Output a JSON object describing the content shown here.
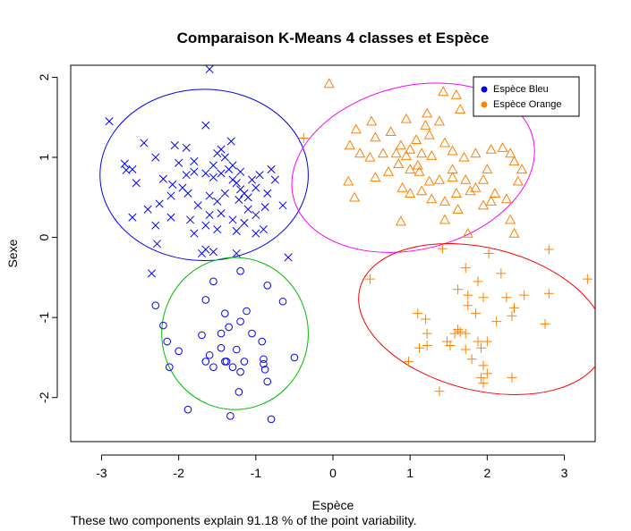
{
  "footnote": "These two components explain 91.18 % of the point variability.",
  "chart_data": {
    "type": "scatter",
    "title": "Comparaison K-Means 4 classes et Espèce",
    "xlabel": "Espèce",
    "ylabel": "Sexe",
    "xlim": [
      -3.4,
      3.4
    ],
    "ylim": [
      -2.55,
      2.15
    ],
    "xticks": [
      -3,
      -2,
      -1,
      0,
      1,
      2,
      3
    ],
    "yticks": [
      -2,
      -1,
      0,
      1,
      2
    ],
    "grid": false,
    "legend": {
      "position": "top-right",
      "entries": [
        {
          "label": "Espèce Bleu",
          "color": "#0000ff"
        },
        {
          "label": "Espèce Orange",
          "color": "#ff8000"
        }
      ]
    },
    "ellipses": [
      {
        "cx": -1.67,
        "cy": 0.78,
        "rx": 1.35,
        "ry": 1.07,
        "color": "#0000ff"
      },
      {
        "cx": -1.27,
        "cy": -1.2,
        "rx": 0.95,
        "ry": 0.95,
        "color": "#00bb00"
      },
      {
        "cx": 1.04,
        "cy": 0.87,
        "rx": 1.6,
        "ry": 1.02,
        "angle": -14,
        "color": "#ff00ff"
      },
      {
        "cx": 1.93,
        "cy": -1.02,
        "rx": 1.63,
        "ry": 0.89,
        "angle": 14,
        "color": "#ff0000"
      }
    ],
    "series": [
      {
        "color": "#0000ff",
        "marker": "x",
        "points": [
          [
            -2.9,
            1.45
          ],
          [
            -1.6,
            2.1
          ],
          [
            -2.45,
            1.18
          ],
          [
            -2.7,
            0.92
          ],
          [
            -2.68,
            0.84
          ],
          [
            -2.2,
            0.73
          ],
          [
            -2.3,
            1.0
          ],
          [
            -2.05,
            1.15
          ],
          [
            -2.0,
            0.93
          ],
          [
            -1.9,
            0.78
          ],
          [
            -2.08,
            0.66
          ],
          [
            -1.95,
            0.62
          ],
          [
            -1.8,
            0.82
          ],
          [
            -1.65,
            0.8
          ],
          [
            -1.55,
            0.75
          ],
          [
            -1.45,
            0.8
          ],
          [
            -1.35,
            0.85
          ],
          [
            -1.3,
            0.72
          ],
          [
            -1.25,
            0.68
          ],
          [
            -1.2,
            0.6
          ],
          [
            -1.15,
            0.55
          ],
          [
            -1.0,
            0.62
          ],
          [
            -0.85,
            0.55
          ],
          [
            -0.75,
            0.72
          ],
          [
            -0.8,
            0.85
          ],
          [
            -0.95,
            0.78
          ],
          [
            -1.05,
            0.72
          ],
          [
            -1.1,
            0.5
          ],
          [
            -1.22,
            0.47
          ],
          [
            -1.4,
            0.55
          ],
          [
            -1.5,
            0.45
          ],
          [
            -1.6,
            0.52
          ],
          [
            -1.75,
            0.4
          ],
          [
            -1.88,
            0.55
          ],
          [
            -2.1,
            0.52
          ],
          [
            -2.25,
            0.42
          ],
          [
            -2.4,
            0.35
          ],
          [
            -2.6,
            0.25
          ],
          [
            -2.3,
            0.15
          ],
          [
            -2.1,
            0.25
          ],
          [
            -1.85,
            0.22
          ],
          [
            -1.6,
            0.28
          ],
          [
            -1.45,
            0.3
          ],
          [
            -1.3,
            0.22
          ],
          [
            -1.15,
            0.18
          ],
          [
            -1.0,
            0.28
          ],
          [
            -0.88,
            0.38
          ],
          [
            -0.65,
            0.4
          ],
          [
            -1.25,
            0.08
          ],
          [
            -1.5,
            0.1
          ],
          [
            -1.65,
            0.15
          ],
          [
            -2.28,
            -0.08
          ],
          [
            -1.65,
            -0.15
          ],
          [
            -1.55,
            -0.18
          ],
          [
            -1.7,
            -0.2
          ],
          [
            -1.25,
            -0.2
          ],
          [
            -0.58,
            -0.25
          ],
          [
            -2.35,
            -0.45
          ],
          [
            -1.8,
            0.05
          ],
          [
            -1.45,
            1.1
          ],
          [
            -1.4,
            1.0
          ],
          [
            -1.3,
            0.9
          ],
          [
            -1.5,
            1.05
          ],
          [
            -1.65,
            1.4
          ],
          [
            -1.9,
            1.12
          ],
          [
            -1.55,
            0.9
          ],
          [
            -1.32,
            1.2
          ],
          [
            -1.2,
            0.82
          ],
          [
            -1.1,
            0.35
          ],
          [
            -0.9,
            0.1
          ],
          [
            -1.0,
            0.05
          ],
          [
            -1.8,
            0.95
          ],
          [
            -2.55,
            0.68
          ],
          [
            -2.6,
            0.85
          ]
        ]
      },
      {
        "color": "#0000ff",
        "marker": "o",
        "points": [
          [
            -1.55,
            -0.55
          ],
          [
            -1.2,
            -0.42
          ],
          [
            -0.85,
            -0.6
          ],
          [
            -0.65,
            -0.8
          ],
          [
            -1.65,
            -0.78
          ],
          [
            -2.3,
            -0.85
          ],
          [
            -2.2,
            -1.1
          ],
          [
            -2.15,
            -1.3
          ],
          [
            -2.0,
            -1.42
          ],
          [
            -1.7,
            -1.22
          ],
          [
            -1.6,
            -1.47
          ],
          [
            -1.55,
            -1.62
          ],
          [
            -1.45,
            -1.38
          ],
          [
            -1.38,
            -1.55
          ],
          [
            -1.3,
            -1.62
          ],
          [
            -1.2,
            -1.68
          ],
          [
            -1.15,
            -1.55
          ],
          [
            -1.05,
            -1.2
          ],
          [
            -1.12,
            -0.92
          ],
          [
            -1.2,
            -1.05
          ],
          [
            -1.4,
            -0.95
          ],
          [
            -1.35,
            -1.12
          ],
          [
            -1.45,
            -1.2
          ],
          [
            -0.92,
            -1.3
          ],
          [
            -0.9,
            -1.52
          ],
          [
            -0.88,
            -1.65
          ],
          [
            -0.85,
            -1.8
          ],
          [
            -0.5,
            -1.5
          ],
          [
            -2.12,
            -1.62
          ],
          [
            -1.88,
            -2.15
          ],
          [
            -1.33,
            -2.23
          ],
          [
            -1.22,
            -1.93
          ],
          [
            -0.8,
            -2.27
          ],
          [
            -1.25,
            -1.4
          ],
          [
            -1.4,
            -1.55
          ],
          [
            -1.65,
            -1.55
          ],
          [
            -0.9,
            -1.58
          ]
        ]
      },
      {
        "color": "#ff8000",
        "marker": "triangle",
        "points": [
          [
            -0.05,
            1.92
          ],
          [
            1.43,
            1.82
          ],
          [
            1.6,
            1.78
          ],
          [
            1.65,
            1.6
          ],
          [
            1.22,
            1.55
          ],
          [
            1.38,
            1.45
          ],
          [
            0.95,
            1.48
          ],
          [
            0.5,
            1.45
          ],
          [
            0.3,
            1.35
          ],
          [
            0.55,
            1.25
          ],
          [
            0.75,
            1.32
          ],
          [
            0.88,
            1.15
          ],
          [
            1.08,
            1.22
          ],
          [
            1.25,
            1.28
          ],
          [
            1.45,
            1.18
          ],
          [
            0.22,
            1.15
          ],
          [
            0.35,
            1.05
          ],
          [
            0.48,
            1.0
          ],
          [
            0.65,
            1.05
          ],
          [
            0.82,
            1.05
          ],
          [
            1.0,
            1.1
          ],
          [
            1.15,
            1.05
          ],
          [
            1.28,
            1.02
          ],
          [
            1.55,
            1.08
          ],
          [
            1.7,
            1.0
          ],
          [
            1.85,
            1.05
          ],
          [
            2.05,
            1.1
          ],
          [
            2.2,
            1.12
          ],
          [
            2.35,
            0.95
          ],
          [
            2.45,
            0.85
          ],
          [
            0.2,
            0.7
          ],
          [
            0.28,
            0.5
          ],
          [
            0.55,
            0.75
          ],
          [
            0.72,
            0.82
          ],
          [
            0.85,
            0.92
          ],
          [
            1.0,
            0.85
          ],
          [
            1.12,
            0.82
          ],
          [
            1.25,
            0.7
          ],
          [
            1.38,
            0.72
          ],
          [
            1.55,
            0.75
          ],
          [
            1.72,
            0.72
          ],
          [
            1.85,
            0.62
          ],
          [
            2.1,
            0.55
          ],
          [
            2.25,
            0.48
          ],
          [
            2.4,
            0.7
          ],
          [
            1.0,
            0.55
          ],
          [
            1.15,
            0.58
          ],
          [
            1.28,
            0.48
          ],
          [
            1.45,
            0.45
          ],
          [
            1.6,
            0.55
          ],
          [
            1.78,
            0.58
          ],
          [
            1.95,
            0.4
          ],
          [
            2.05,
            0.45
          ],
          [
            0.88,
            0.2
          ],
          [
            1.45,
            0.22
          ],
          [
            1.62,
            0.35
          ],
          [
            1.75,
            0.05
          ],
          [
            2.3,
            0.22
          ],
          [
            2.35,
            0.05
          ],
          [
            0.95,
            1.02
          ],
          [
            1.55,
            0.85
          ],
          [
            2.0,
            0.85
          ],
          [
            1.95,
            0.72
          ],
          [
            2.3,
            1.05
          ],
          [
            1.2,
            1.4
          ],
          [
            1.1,
            0.9
          ],
          [
            0.9,
            0.62
          ]
        ]
      },
      {
        "color": "#ff8000",
        "marker": "plus",
        "points": [
          [
            -0.38,
            1.24
          ],
          [
            0.48,
            -0.52
          ],
          [
            1.42,
            -0.14
          ],
          [
            1.72,
            -0.38
          ],
          [
            2.02,
            -0.2
          ],
          [
            2.18,
            -0.45
          ],
          [
            2.8,
            -0.15
          ],
          [
            3.3,
            -0.52
          ],
          [
            1.62,
            -0.65
          ],
          [
            1.75,
            -0.72
          ],
          [
            1.88,
            -0.55
          ],
          [
            1.95,
            -0.75
          ],
          [
            2.25,
            -0.75
          ],
          [
            2.48,
            -0.72
          ],
          [
            2.8,
            -0.7
          ],
          [
            1.1,
            -0.95
          ],
          [
            1.2,
            -1.02
          ],
          [
            1.22,
            -1.2
          ],
          [
            1.62,
            -1.15
          ],
          [
            1.72,
            -1.2
          ],
          [
            1.85,
            -0.95
          ],
          [
            2.0,
            -1.3
          ],
          [
            2.12,
            -1.05
          ],
          [
            2.32,
            -0.98
          ],
          [
            2.35,
            -0.88
          ],
          [
            2.75,
            -1.08
          ],
          [
            1.12,
            -1.38
          ],
          [
            1.22,
            -1.35
          ],
          [
            1.48,
            -1.3
          ],
          [
            1.58,
            -1.2
          ],
          [
            1.72,
            -1.4
          ],
          [
            1.8,
            -1.52
          ],
          [
            1.88,
            -1.3
          ],
          [
            1.92,
            -1.38
          ],
          [
            1.95,
            -1.6
          ],
          [
            2.0,
            -1.7
          ],
          [
            1.92,
            -1.75
          ],
          [
            1.95,
            -1.82
          ],
          [
            2.32,
            -1.75
          ],
          [
            0.98,
            -1.55
          ],
          [
            1.38,
            -1.92
          ],
          [
            1.52,
            -1.35
          ],
          [
            1.65,
            -1.18
          ],
          [
            1.75,
            -0.85
          ]
        ]
      }
    ]
  }
}
